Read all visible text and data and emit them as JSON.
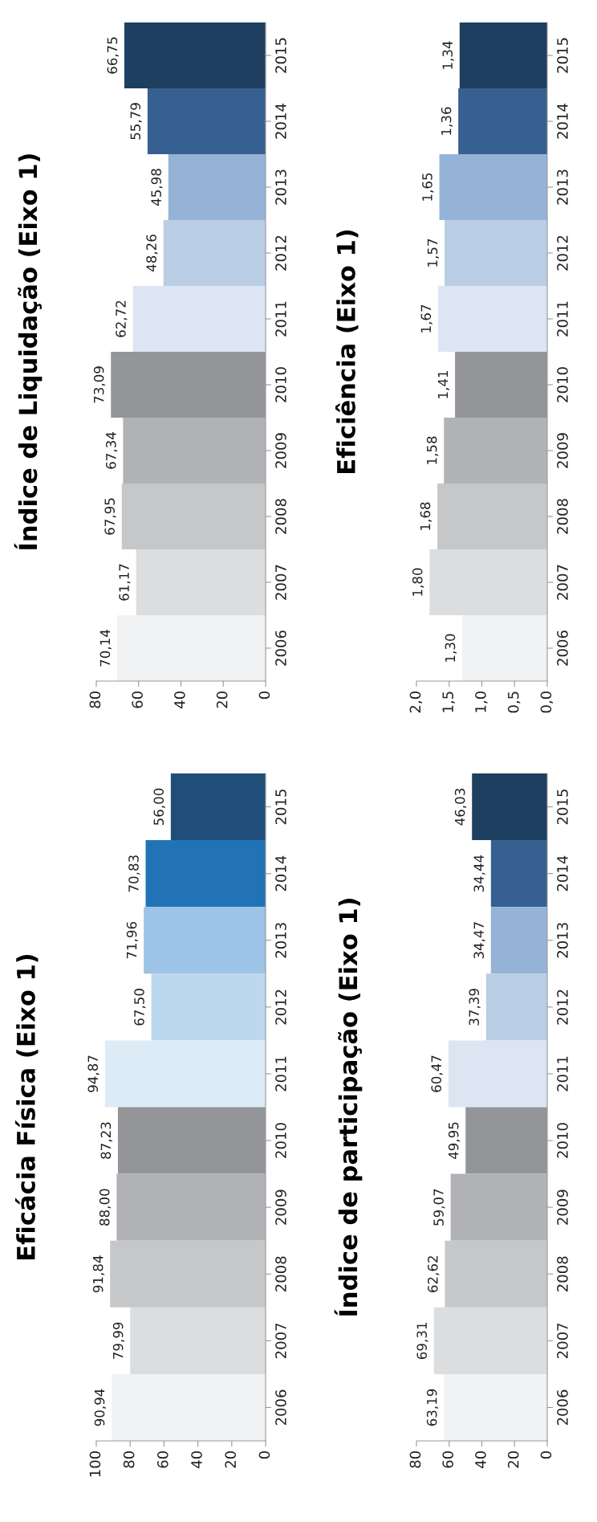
{
  "chart_data": [
    {
      "type": "bar",
      "orientation": "horizontal",
      "title": "Índice de Liquidação (Eixo 1)",
      "categories": [
        "2015",
        "2014",
        "2013",
        "2012",
        "2011",
        "2010",
        "2009",
        "2008",
        "2007",
        "2006"
      ],
      "values": [
        66.75,
        55.79,
        45.98,
        48.26,
        62.72,
        73.09,
        67.34,
        67.95,
        61.17,
        70.14
      ],
      "value_labels": [
        "66,75",
        "55,79",
        "45,98",
        "48,26",
        "62,72",
        "73,09",
        "67,34",
        "67,95",
        "61,17",
        "70,14"
      ],
      "colors": [
        "#1f3f60",
        "#366092",
        "#95b3d7",
        "#b9cde5",
        "#dce6f2",
        "#939598",
        "#b1b2b5",
        "#c6c7c9",
        "#dcdddf",
        "#f1f2f3"
      ],
      "xlim": [
        80,
        0
      ],
      "xticks": [
        80,
        60,
        40,
        20,
        0
      ],
      "grid": false,
      "legend": false
    },
    {
      "type": "bar",
      "orientation": "horizontal",
      "title": "Eficiência (Eixo 1)",
      "categories": [
        "2015",
        "2014",
        "2013",
        "2012",
        "2011",
        "2010",
        "2009",
        "2008",
        "2007",
        "2006"
      ],
      "values": [
        1.34,
        1.36,
        1.65,
        1.57,
        1.67,
        1.41,
        1.58,
        1.68,
        1.8,
        1.3
      ],
      "value_labels": [
        "1,34",
        "1,36",
        "1,65",
        "1,57",
        "1,67",
        "1,41",
        "1,58",
        "1,68",
        "1,80",
        "1,30"
      ],
      "colors": [
        "#1f3f60",
        "#366092",
        "#95b3d7",
        "#b9cde5",
        "#dce6f2",
        "#939598",
        "#b1b2b5",
        "#c6c7c9",
        "#dcdddf",
        "#f1f2f3"
      ],
      "xlim": [
        2.0,
        0
      ],
      "xticks": [
        {
          "value": 2.0,
          "label": "2,0"
        },
        {
          "value": 1.5,
          "label": "1,5"
        },
        {
          "value": 1.0,
          "label": "1,0"
        },
        {
          "value": 0.5,
          "label": "0,5"
        },
        {
          "value": 0,
          "label": "0,0"
        }
      ],
      "grid": false,
      "legend": false
    },
    {
      "type": "bar",
      "orientation": "horizontal",
      "title": "Eficácia Física (Eixo 1)",
      "categories": [
        "2015",
        "2014",
        "2013",
        "2012",
        "2011",
        "2010",
        "2009",
        "2008",
        "2007",
        "2006"
      ],
      "values": [
        56.0,
        70.83,
        71.96,
        67.5,
        94.87,
        87.23,
        88.0,
        91.84,
        79.99,
        90.94
      ],
      "value_labels": [
        "56,00",
        "70,83",
        "71,96",
        "67,50",
        "94,87",
        "87,23",
        "88,00",
        "91,84",
        "79,99",
        "90,94"
      ],
      "colors": [
        "#1f4e79",
        "#2173b6",
        "#9dc3e6",
        "#bdd7ee",
        "#ddebf7",
        "#939598",
        "#b1b2b5",
        "#c6c7c9",
        "#dcdddf",
        "#f1f2f3"
      ],
      "xlim": [
        100,
        0
      ],
      "xticks": [
        100,
        80,
        60,
        40,
        20,
        0
      ],
      "grid": false,
      "legend": false
    },
    {
      "type": "bar",
      "orientation": "horizontal",
      "title": "Índice de participação (Eixo 1)",
      "categories": [
        "2015",
        "2014",
        "2013",
        "2012",
        "2011",
        "2010",
        "2009",
        "2008",
        "2007",
        "2006"
      ],
      "values": [
        46.03,
        34.44,
        34.47,
        37.39,
        60.47,
        49.95,
        59.07,
        62.62,
        69.31,
        63.19
      ],
      "value_labels": [
        "46,03",
        "34,44",
        "34,47",
        "37,39",
        "60,47",
        "49,95",
        "59,07",
        "62,62",
        "69,31",
        "63,19"
      ],
      "colors": [
        "#1f3f60",
        "#366092",
        "#95b3d7",
        "#b9cde5",
        "#dce6f2",
        "#939598",
        "#b1b2b5",
        "#c6c7c9",
        "#dcdddf",
        "#f1f2f3"
      ],
      "xlim": [
        80,
        0
      ],
      "xticks": [
        80,
        60,
        40,
        20,
        0
      ],
      "grid": false,
      "legend": false
    }
  ]
}
